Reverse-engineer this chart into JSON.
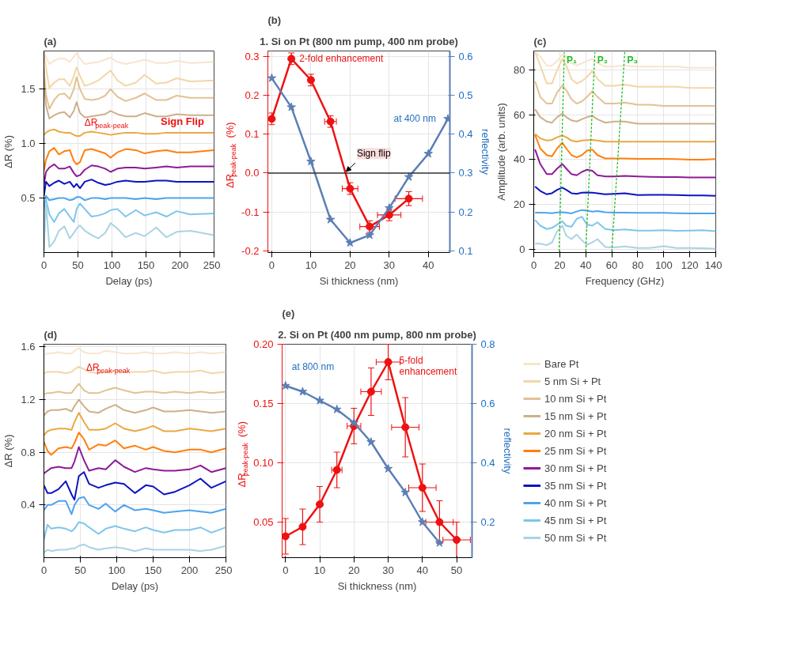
{
  "chart_data": [
    {
      "type": "line",
      "title": "(a)",
      "xlabel": "Delay (ps)",
      "ylabel": "ΔR (%)",
      "x": [
        0,
        3,
        8,
        15,
        22,
        30,
        38,
        44,
        48,
        53,
        60,
        70,
        80,
        90,
        98,
        108,
        120,
        135,
        148,
        165,
        180,
        195,
        215,
        250
      ],
      "series": [
        {
          "color": "#f7e5cf",
          "values": [
            1.84,
            1.8,
            1.73,
            1.76,
            1.78,
            1.78,
            1.75,
            1.8,
            1.83,
            1.78,
            1.73,
            1.74,
            1.75,
            1.77,
            1.79,
            1.75,
            1.73,
            1.75,
            1.77,
            1.74,
            1.74,
            1.76,
            1.74,
            1.75
          ]
        },
        {
          "color": "#f1d7a8",
          "values": [
            1.84,
            1.7,
            1.51,
            1.56,
            1.59,
            1.59,
            1.53,
            1.62,
            1.7,
            1.62,
            1.53,
            1.55,
            1.58,
            1.63,
            1.67,
            1.58,
            1.53,
            1.56,
            1.63,
            1.55,
            1.56,
            1.6,
            1.57,
            1.58
          ]
        },
        {
          "color": "#e2c293",
          "values": [
            1.7,
            1.45,
            1.32,
            1.4,
            1.45,
            1.46,
            1.41,
            1.5,
            1.61,
            1.5,
            1.41,
            1.4,
            1.41,
            1.44,
            1.5,
            1.43,
            1.39,
            1.42,
            1.46,
            1.4,
            1.4,
            1.44,
            1.42,
            1.42
          ]
        },
        {
          "color": "#cdb08a",
          "values": [
            1.6,
            1.35,
            1.23,
            1.26,
            1.28,
            1.29,
            1.24,
            1.3,
            1.38,
            1.28,
            1.24,
            1.25,
            1.26,
            1.27,
            1.3,
            1.27,
            1.25,
            1.25,
            1.28,
            1.25,
            1.25,
            1.27,
            1.26,
            1.26
          ]
        },
        {
          "color": "#eba843",
          "values": [
            1.08,
            1.1,
            1.12,
            1.13,
            1.11,
            1.1,
            1.1,
            1.08,
            1.07,
            1.07,
            1.1,
            1.11,
            1.1,
            1.09,
            1.08,
            1.09,
            1.1,
            1.1,
            1.09,
            1.09,
            1.1,
            1.1,
            1.1,
            1.1
          ]
        },
        {
          "color": "#ff7f0e",
          "values": [
            0.75,
            0.85,
            0.93,
            0.96,
            0.9,
            0.93,
            0.94,
            0.84,
            0.81,
            0.83,
            0.94,
            0.95,
            0.93,
            0.91,
            0.87,
            0.92,
            0.95,
            0.94,
            0.91,
            0.93,
            0.94,
            0.92,
            0.92,
            0.94
          ]
        },
        {
          "color": "#8e1a98",
          "values": [
            0.62,
            0.74,
            0.78,
            0.81,
            0.77,
            0.77,
            0.79,
            0.73,
            0.7,
            0.71,
            0.76,
            0.8,
            0.79,
            0.77,
            0.74,
            0.77,
            0.78,
            0.78,
            0.77,
            0.78,
            0.79,
            0.78,
            0.79,
            0.79
          ]
        },
        {
          "color": "#0b14c2",
          "values": [
            0.52,
            0.65,
            0.61,
            0.64,
            0.66,
            0.63,
            0.65,
            0.6,
            0.63,
            0.59,
            0.65,
            0.67,
            0.64,
            0.62,
            0.63,
            0.65,
            0.66,
            0.65,
            0.65,
            0.66,
            0.66,
            0.65,
            0.65,
            0.65
          ]
        },
        {
          "color": "#4da3ee",
          "values": [
            0.38,
            0.52,
            0.48,
            0.49,
            0.5,
            0.5,
            0.48,
            0.49,
            0.51,
            0.51,
            0.48,
            0.5,
            0.5,
            0.49,
            0.5,
            0.5,
            0.5,
            0.49,
            0.5,
            0.49,
            0.5,
            0.5,
            0.5,
            0.5
          ]
        },
        {
          "color": "#7ec6ea",
          "values": [
            0.08,
            0.49,
            0.35,
            0.28,
            0.36,
            0.4,
            0.33,
            0.28,
            0.4,
            0.45,
            0.4,
            0.33,
            0.34,
            0.36,
            0.39,
            0.4,
            0.33,
            0.39,
            0.34,
            0.37,
            0.33,
            0.38,
            0.35,
            0.36
          ]
        },
        {
          "color": "#a9d3e3",
          "values": [
            0.02,
            0.46,
            0.05,
            0.1,
            0.2,
            0.24,
            0.13,
            0.18,
            0.22,
            0.25,
            0.2,
            0.16,
            0.13,
            0.18,
            0.27,
            0.22,
            0.14,
            0.18,
            0.15,
            0.23,
            0.14,
            0.19,
            0.2,
            0.16
          ]
        }
      ],
      "xlim": [
        0,
        250
      ],
      "ylim": [
        0,
        1.85
      ],
      "xticks": [
        0,
        50,
        100,
        150,
        200,
        250
      ],
      "yticks": [
        0.5,
        {
          "value": 1,
          "label": "1.0"
        },
        1.5
      ],
      "grid": true,
      "annotations": [
        {
          "text": "ΔR$_{peak-peak}$",
          "x": 48,
          "y": 1.31
        },
        {
          "text": "Sign Flip",
          "x": 250,
          "y": 1.1
        }
      ]
    },
    {
      "type": "line",
      "title": "(b)",
      "subtitle": "1. Si on Pt (800 nm pump, 400 nm probe)",
      "xlabel": "Si thickness (nm)",
      "ylabel": "ΔR$_{peak-peak}$ (%)",
      "y2label": "reflectivity",
      "series": [
        {
          "color": "#ee1111",
          "x": [
            0,
            5,
            10,
            15,
            20,
            25,
            30,
            35
          ],
          "values": [
            0.14,
            0.295,
            0.24,
            0.133,
            -0.04,
            -0.138,
            -0.108,
            -0.066
          ],
          "errors": [
            0.015,
            0.015,
            0.015,
            0.015,
            0.015,
            0.015,
            0.015,
            0.018
          ],
          "xerrors": [
            null,
            null,
            null,
            1.5,
            2,
            2.5,
            3,
            3.5
          ],
          "marker": "circle"
        },
        {
          "color": "#5b7fb5",
          "x": [
            0,
            5,
            10,
            15,
            20,
            25,
            30,
            35,
            40,
            45
          ],
          "values": [
            0.545,
            0.47,
            0.33,
            0.18,
            0.12,
            0.14,
            0.21,
            0.29,
            0.35,
            0.44
          ],
          "axis": "y2",
          "marker": "star"
        }
      ],
      "xlim": [
        -1,
        45.5
      ],
      "ylim": [
        -0.205,
        0.315
      ],
      "y2lim": [
        0.095,
        0.615
      ],
      "xticks": [
        0,
        10,
        20,
        30,
        40
      ],
      "yticks": [
        -0.2,
        -0.1,
        {
          "value": 0,
          "label": "0.0"
        },
        0.1,
        0.2,
        0.3
      ],
      "y2ticks": [
        0.1,
        0.2,
        0.3,
        0.4,
        0.5,
        0.6
      ],
      "grid": true,
      "ref_lines": [
        {
          "axis": "y",
          "value": 0,
          "color": "#333333"
        }
      ],
      "annotations": [
        {
          "text": "2-fold enhancement",
          "x": 5,
          "y": 0.295
        },
        {
          "text": "Sign flip",
          "x": 19,
          "y": 0.0
        },
        {
          "text": "at 400 nm",
          "x": 45,
          "y": 0.14
        }
      ]
    },
    {
      "type": "line",
      "title": "(c)",
      "xlabel": "Frequency (GHz)",
      "ylabel": "Amplitude (arb. units)",
      "x": [
        1,
        5,
        10,
        14,
        18,
        22,
        25,
        29,
        33,
        37,
        41,
        45,
        49,
        55,
        62,
        70,
        80,
        90,
        100,
        110,
        120,
        130,
        140
      ],
      "series": [
        {
          "color": "#f7e5cf",
          "values": [
            88,
            86,
            82,
            82,
            84,
            87,
            86,
            83,
            82,
            83,
            84,
            85,
            83,
            81.5,
            81.5,
            82,
            81.5,
            81.5,
            81.5,
            81.5,
            81,
            81,
            81
          ]
        },
        {
          "color": "#f1d7a8",
          "values": [
            88,
            82,
            74,
            74,
            80,
            85,
            82,
            76,
            74,
            75,
            77,
            79.5,
            76,
            73,
            73,
            73.5,
            72.5,
            72.5,
            72.5,
            72.5,
            72,
            72,
            72
          ]
        },
        {
          "color": "#e2c293",
          "values": [
            75,
            68,
            65,
            65,
            70,
            73,
            71,
            67,
            65,
            66,
            68,
            70.5,
            68,
            65,
            65,
            65.5,
            64.5,
            64.5,
            64,
            64,
            64,
            64,
            64
          ]
        },
        {
          "color": "#cdb08a",
          "values": [
            62.5,
            59,
            57,
            56.5,
            59,
            60.5,
            59,
            57.5,
            57,
            58,
            59,
            59.5,
            58,
            56.5,
            57,
            57,
            56,
            56,
            56,
            56,
            56,
            56,
            56
          ]
        },
        {
          "color": "#eba843",
          "values": [
            51.5,
            49.5,
            48.5,
            48.8,
            50,
            50.8,
            50,
            48.5,
            48,
            48.5,
            48.7,
            48.8,
            48.5,
            48,
            48,
            48,
            48,
            48,
            48,
            48,
            48,
            48,
            48
          ]
        },
        {
          "color": "#ff7f0e",
          "values": [
            51,
            45,
            42,
            41.5,
            45,
            47.5,
            45,
            42,
            41,
            42,
            44,
            44.5,
            42,
            40.5,
            40.5,
            40.5,
            40.3,
            40.3,
            40.3,
            40.2,
            40,
            40,
            40.2
          ]
        },
        {
          "color": "#8e1a98",
          "values": [
            44.5,
            38,
            33.5,
            33.5,
            36,
            38,
            36,
            33.5,
            33,
            34.5,
            35.5,
            35,
            33,
            32.5,
            32.5,
            32.7,
            32.5,
            32.3,
            32.2,
            32.2,
            32,
            32,
            32
          ]
        },
        {
          "color": "#0b14c2",
          "values": [
            28,
            26,
            24.5,
            25,
            26.5,
            27.5,
            26.5,
            25,
            24.7,
            25.2,
            25.3,
            25.2,
            25,
            24.5,
            24.7,
            25,
            24.2,
            24.3,
            24.3,
            24.2,
            24,
            24,
            23.8
          ]
        },
        {
          "color": "#4da3ee",
          "values": [
            16.3,
            16.3,
            16.2,
            16.1,
            16.4,
            16.5,
            16.3,
            16,
            16.8,
            17.5,
            17.2,
            16.8,
            17,
            16.5,
            16.3,
            16.3,
            16.2,
            16.2,
            16.2,
            16.1,
            16,
            16,
            16
          ]
        },
        {
          "color": "#7ec6ea",
          "values": [
            13,
            10.5,
            9,
            9.5,
            11,
            12.5,
            10.5,
            10,
            13.5,
            14.5,
            11,
            10.5,
            12,
            9,
            8.5,
            8.8,
            8.3,
            8.3,
            8.5,
            8.2,
            8.3,
            8.5,
            8
          ]
        },
        {
          "color": "#a9d3e3",
          "values": [
            2.5,
            2.5,
            1.8,
            3,
            8,
            10.5,
            6,
            4.5,
            6.5,
            4,
            2,
            3,
            4.5,
            1,
            0.8,
            1.2,
            0.5,
            0.6,
            1.3,
            0.5,
            0.5,
            0.4,
            0.2
          ]
        },
        {
          "name": "P₁",
          "color": "#22bb22",
          "x": [
            19.5,
            23.5
          ],
          "values": [
            -1,
            88
          ],
          "line_style": "dashed"
        },
        {
          "name": "P₂",
          "color": "#22bb22",
          "x": [
            40,
            47
          ],
          "values": [
            -1,
            88
          ],
          "line_style": "dashed"
        },
        {
          "name": "P₃",
          "color": "#22bb22",
          "x": [
            60,
            70
          ],
          "values": [
            -1,
            88
          ],
          "line_style": "dashed"
        }
      ],
      "xlim": [
        0,
        140
      ],
      "ylim": [
        -1.5,
        88.5
      ],
      "xticks": [
        0,
        20,
        40,
        60,
        80,
        100,
        120,
        140
      ],
      "yticks": [
        0,
        20,
        40,
        60,
        80
      ],
      "grid": true
    },
    {
      "type": "line",
      "title": "(d)",
      "xlabel": "Delay (ps)",
      "ylabel": "ΔR (%)",
      "x": [
        0,
        5,
        10,
        20,
        30,
        38,
        42,
        48,
        55,
        62,
        75,
        85,
        98,
        110,
        125,
        140,
        150,
        165,
        180,
        200,
        215,
        230,
        250
      ],
      "series": [
        {
          "name": "Bare Pt",
          "color": "#f7e5cf",
          "values": [
            1.54,
            1.55,
            1.55,
            1.56,
            1.55,
            1.55,
            1.57,
            1.59,
            1.56,
            1.55,
            1.55,
            1.57,
            1.56,
            1.55,
            1.55,
            1.56,
            1.55,
            1.55,
            1.56,
            1.55,
            1.56,
            1.55,
            1.56
          ]
        },
        {
          "name": "5 nm Si + Pt",
          "color": "#f1d7a8",
          "values": [
            1.4,
            1.41,
            1.41,
            1.41,
            1.4,
            1.41,
            1.43,
            1.45,
            1.43,
            1.41,
            1.4,
            1.41,
            1.42,
            1.41,
            1.41,
            1.41,
            1.42,
            1.4,
            1.41,
            1.41,
            1.42,
            1.4,
            1.41
          ]
        },
        {
          "name": "10 nm Si + Pt",
          "color": "#e2c293",
          "values": [
            1.24,
            1.25,
            1.25,
            1.26,
            1.25,
            1.25,
            1.28,
            1.32,
            1.27,
            1.25,
            1.25,
            1.27,
            1.29,
            1.27,
            1.25,
            1.26,
            1.26,
            1.25,
            1.26,
            1.25,
            1.26,
            1.25,
            1.26
          ]
        },
        {
          "name": "15 nm Si + Pt",
          "color": "#cdb08a",
          "values": [
            1.08,
            1.11,
            1.12,
            1.12,
            1.13,
            1.11,
            1.15,
            1.2,
            1.15,
            1.11,
            1.1,
            1.13,
            1.16,
            1.12,
            1.1,
            1.12,
            1.14,
            1.11,
            1.11,
            1.12,
            1.11,
            1.1,
            1.11
          ]
        },
        {
          "name": "20 nm Si + Pt",
          "color": "#eba843",
          "values": [
            0.93,
            0.96,
            0.97,
            0.98,
            0.98,
            0.97,
            1.03,
            1.1,
            1.03,
            0.97,
            0.97,
            0.98,
            1.02,
            0.98,
            0.96,
            0.98,
            1.0,
            0.96,
            0.96,
            0.98,
            0.97,
            0.96,
            0.98
          ]
        },
        {
          "name": "25 nm Si + Pt",
          "color": "#ff7f0e",
          "values": [
            0.88,
            0.81,
            0.78,
            0.83,
            0.84,
            0.83,
            0.87,
            0.95,
            0.9,
            0.82,
            0.86,
            0.85,
            0.89,
            0.83,
            0.85,
            0.82,
            0.84,
            0.81,
            0.8,
            0.82,
            0.82,
            0.8,
            0.83
          ]
        },
        {
          "name": "30 nm Si + Pt",
          "color": "#8e1a98",
          "values": [
            0.64,
            0.66,
            0.68,
            0.69,
            0.68,
            0.68,
            0.73,
            0.84,
            0.74,
            0.66,
            0.68,
            0.67,
            0.74,
            0.69,
            0.65,
            0.68,
            0.67,
            0.66,
            0.66,
            0.67,
            0.7,
            0.65,
            0.68
          ]
        },
        {
          "name": "35 nm Si + Pt",
          "color": "#0b14c2",
          "values": [
            0.55,
            0.49,
            0.49,
            0.52,
            0.58,
            0.48,
            0.44,
            0.62,
            0.65,
            0.56,
            0.53,
            0.55,
            0.57,
            0.56,
            0.49,
            0.55,
            0.54,
            0.48,
            0.5,
            0.55,
            0.6,
            0.53,
            0.58
          ]
        },
        {
          "name": "40 nm Si + Pt",
          "color": "#4da3ee",
          "values": [
            0.36,
            0.4,
            0.4,
            0.43,
            0.43,
            0.33,
            0.4,
            0.45,
            0.46,
            0.4,
            0.37,
            0.41,
            0.35,
            0.4,
            0.36,
            0.37,
            0.36,
            0.34,
            0.35,
            0.36,
            0.35,
            0.34,
            0.37
          ]
        },
        {
          "name": "45 nm Si + Pt",
          "color": "#7ec6ea",
          "values": [
            0.14,
            0.25,
            0.22,
            0.23,
            0.22,
            0.2,
            0.22,
            0.27,
            0.26,
            0.23,
            0.18,
            0.22,
            0.24,
            0.22,
            0.2,
            0.23,
            0.21,
            0.19,
            0.21,
            0.21,
            0.23,
            0.19,
            0.23
          ]
        },
        {
          "name": "50 nm Si + Pt",
          "color": "#a9d3e3",
          "values": [
            0.04,
            0.06,
            0.05,
            0.06,
            0.06,
            0.07,
            0.07,
            0.09,
            0.1,
            0.08,
            0.06,
            0.07,
            0.08,
            0.07,
            0.05,
            0.07,
            0.06,
            0.06,
            0.06,
            0.06,
            0.05,
            0.06,
            0.09
          ]
        }
      ],
      "xlim": [
        0,
        250
      ],
      "ylim": [
        0,
        1.62
      ],
      "xticks": [
        0,
        50,
        100,
        150,
        200,
        250
      ],
      "yticks": [
        0.4,
        0.8,
        1.2,
        1.6
      ],
      "grid": true,
      "legend": "right",
      "annotations": [
        {
          "text": "ΔR$_{peak-peak}$",
          "x": 45,
          "y": 1.445
        }
      ]
    },
    {
      "type": "line",
      "title": "(e)",
      "subtitle": "2. Si on Pt (400 nm pump, 800 nm probe)",
      "xlabel": "Si thickness (nm)",
      "ylabel": "ΔR$_{peak-peak}$ (%)",
      "y2label": "reflectivity",
      "series": [
        {
          "color": "#ee1111",
          "x": [
            0,
            5,
            10,
            15,
            20,
            25,
            30,
            35,
            40,
            45,
            50
          ],
          "values": [
            0.038,
            0.046,
            0.065,
            0.094,
            0.131,
            0.16,
            0.185,
            0.13,
            0.079,
            0.05,
            0.035
          ],
          "errors": [
            0.015,
            0.015,
            0.015,
            0.015,
            0.015,
            0.02,
            0.015,
            0.025,
            0.02,
            0.018,
            0.015
          ],
          "xerrors": [
            null,
            null,
            null,
            1.5,
            2,
            3,
            3.5,
            4,
            4,
            4,
            4
          ],
          "marker": "circle"
        },
        {
          "color": "#5b7fb5",
          "x": [
            0,
            5,
            10,
            15,
            20,
            25,
            30,
            35,
            40,
            45
          ],
          "values": [
            0.66,
            0.64,
            0.61,
            0.58,
            0.535,
            0.47,
            0.38,
            0.3,
            0.2,
            0.13
          ],
          "axis": "y2",
          "marker": "star"
        }
      ],
      "xlim": [
        -1,
        54.5
      ],
      "ylim": [
        0.02,
        0.2
      ],
      "y2lim": [
        0.08,
        0.8
      ],
      "xticks": [
        0,
        10,
        20,
        30,
        40,
        50
      ],
      "yticks": [
        {
          "value": 0.05,
          "label": "0.05"
        },
        {
          "value": 0.1,
          "label": "0.10"
        },
        {
          "value": 0.15,
          "label": "0.15"
        },
        {
          "value": 0.2,
          "label": "0.20"
        }
      ],
      "y2ticks": [
        0.2,
        0.4,
        0.6,
        0.8
      ],
      "grid": true,
      "annotations": [
        {
          "text": "5-fold enhancement",
          "x": 30,
          "y": 0.185
        },
        {
          "text": "at 800 nm",
          "x": 0,
          "y": 0.165
        }
      ]
    }
  ]
}
